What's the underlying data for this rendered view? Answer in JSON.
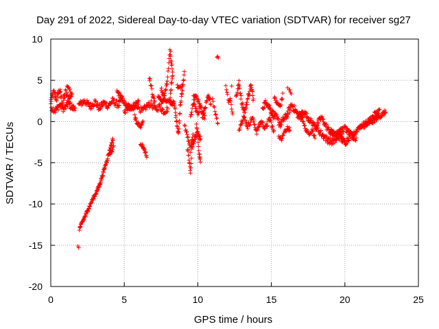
{
  "chart_data": {
    "type": "scatter",
    "title": "Day 291 of 2022, Sidereal Day-to-day VTEC variation (SDTVAR) for receiver sg27",
    "xlabel": "GPS time / hours",
    "ylabel": "SDTVAR / TECUs",
    "xlim": [
      0,
      25
    ],
    "ylim": [
      -20,
      10
    ],
    "xticks": [
      0,
      5,
      10,
      15,
      20,
      25
    ],
    "yticks": [
      -20,
      -15,
      -10,
      -5,
      0,
      5,
      10
    ],
    "grid": true,
    "marker": "+",
    "series": [
      {
        "name": "SDTVAR",
        "color": "#ff0000",
        "tracks": [
          {
            "x": [
              0.0,
              0.2,
              0.4,
              0.6,
              0.8,
              1.0,
              1.2,
              1.4
            ],
            "y": [
              2.5,
              3.5,
              2.8,
              3.8,
              2.2,
              3.5,
              2.8,
              3.2
            ],
            "spread": 1.0,
            "step": 0.025
          },
          {
            "x": [
              0.0,
              0.3,
              0.6,
              0.9,
              1.2,
              1.5,
              1.7
            ],
            "y": [
              1.8,
              1.3,
              2.0,
              1.5,
              2.2,
              1.6,
              1.8
            ],
            "spread": 0.8,
            "step": 0.03
          },
          {
            "x": [
              1.1,
              1.3,
              1.5
            ],
            "y": [
              4.2,
              3.8,
              3.2
            ],
            "spread": 0.4,
            "step": 0.04
          },
          {
            "x": [
              1.9,
              2.3,
              2.7,
              3.0,
              3.3,
              3.6,
              3.9,
              4.2,
              4.6,
              4.9
            ],
            "y": [
              2.0,
              2.5,
              1.8,
              2.4,
              1.6,
              2.3,
              1.9,
              2.5,
              2.0,
              2.8
            ],
            "spread": 0.8,
            "step": 0.03
          },
          {
            "x": [
              4.5,
              4.7,
              4.9,
              5.1,
              5.3,
              5.5,
              5.8,
              6.0
            ],
            "y": [
              3.6,
              3.2,
              2.6,
              2.0,
              1.6,
              1.8,
              2.2,
              2.5
            ],
            "spread": 0.6,
            "step": 0.03
          },
          {
            "x": [
              5.0,
              5.3,
              5.6,
              5.9,
              6.2,
              6.5,
              6.8,
              7.1,
              7.4,
              7.7,
              8.0
            ],
            "y": [
              1.2,
              1.8,
              1.4,
              2.0,
              1.2,
              1.8,
              2.2,
              1.5,
              1.8,
              1.2,
              1.6
            ],
            "spread": 0.8,
            "step": 0.035
          },
          {
            "x": [
              5.7,
              5.9,
              6.1,
              6.3
            ],
            "y": [
              0.6,
              -0.2,
              -0.6,
              0.2
            ],
            "spread": 0.5,
            "step": 0.03
          },
          {
            "x": [
              6.7,
              6.9,
              7.1
            ],
            "y": [
              5.5,
              3.5,
              2.0
            ],
            "spread": 0.6,
            "step": 0.03
          },
          {
            "x": [
              7.3,
              7.6,
              7.9,
              8.1,
              8.3
            ],
            "y": [
              3.2,
              2.2,
              4.5,
              8.3,
              6.0
            ],
            "spread": 0.6,
            "step": 0.025
          },
          {
            "x": [
              7.5,
              7.8,
              8.1,
              8.4
            ],
            "y": [
              4.0,
              2.6,
              2.3,
              2.2
            ],
            "spread": 0.6,
            "step": 0.03
          },
          {
            "x": [
              8.1,
              8.2,
              8.3
            ],
            "y": [
              2.5,
              4.5,
              6.0
            ],
            "spread": 0.5,
            "step": 0.02
          },
          {
            "x": [
              8.4,
              8.5,
              8.6,
              8.7,
              8.8,
              9.0,
              9.1
            ],
            "y": [
              2.2,
              0.8,
              -0.5,
              -1.5,
              1.8,
              4.5,
              6.6
            ],
            "spread": 0.6,
            "step": 0.02
          },
          {
            "x": [
              8.6,
              8.8,
              9.0
            ],
            "y": [
              4.3,
              4.0,
              4.6
            ],
            "spread": 0.4,
            "step": 0.04
          },
          {
            "x": [
              9.1,
              9.3,
              9.5,
              9.7
            ],
            "y": [
              -0.5,
              -1.8,
              -3.5,
              -1.0
            ],
            "spread": 0.5,
            "step": 0.03
          },
          {
            "x": [
              9.3,
              9.4,
              9.5,
              9.6,
              9.8,
              10.0,
              10.2
            ],
            "y": [
              -3.2,
              -4.5,
              -6.2,
              -3.0,
              -2.0,
              -1.5,
              -2.3
            ],
            "spread": 0.7,
            "step": 0.02
          },
          {
            "x": [
              9.5,
              9.7,
              9.9,
              10.1
            ],
            "y": [
              0.5,
              2.2,
              1.3,
              0.8
            ],
            "spread": 0.6,
            "step": 0.03
          },
          {
            "x": [
              9.7,
              9.9,
              10.1,
              10.3,
              10.5
            ],
            "y": [
              2.8,
              3.2,
              2.0,
              1.2,
              0.3
            ],
            "spread": 0.8,
            "step": 0.025
          },
          {
            "x": [
              9.9,
              10.0,
              10.1,
              10.2
            ],
            "y": [
              -0.5,
              -2.0,
              -4.0,
              -5.0
            ],
            "spread": 0.8,
            "step": 0.02
          },
          {
            "x": [
              10.3,
              10.5,
              10.7,
              10.9
            ],
            "y": [
              0.4,
              1.8,
              3.0,
              2.2
            ],
            "spread": 0.5,
            "step": 0.025
          },
          {
            "x": [
              11.0,
              11.2,
              11.4
            ],
            "y": [
              2.8,
              1.0,
              -0.5
            ],
            "spread": 0.5,
            "step": 0.04
          },
          {
            "x": [
              11.9,
              12.1,
              12.2,
              12.4
            ],
            "y": [
              4.4,
              2.4,
              2.8,
              0.5
            ],
            "spread": 0.4,
            "step": 0.04
          },
          {
            "x": [
              12.6,
              12.8,
              13.0,
              13.2,
              13.4,
              13.6,
              13.8
            ],
            "y": [
              3.0,
              4.6,
              2.2,
              1.2,
              2.8,
              4.4,
              2.5
            ],
            "spread": 0.8,
            "step": 0.025
          },
          {
            "x": [
              12.8,
              13.1,
              13.4,
              13.7,
              14.0,
              14.3,
              14.6,
              14.9,
              15.2
            ],
            "y": [
              -0.8,
              0.6,
              -0.6,
              0.5,
              -1.2,
              0.0,
              -0.8,
              0.4,
              -1.6
            ],
            "spread": 0.7,
            "step": 0.03
          },
          {
            "x": [
              14.4,
              14.7,
              15.0,
              15.3,
              15.6,
              16.0,
              16.4,
              16.8,
              17.2
            ],
            "y": [
              1.8,
              2.4,
              1.2,
              0.5,
              -0.3,
              0.6,
              2.0,
              0.8,
              0.4
            ],
            "spread": 0.9,
            "step": 0.025
          },
          {
            "x": [
              15.2,
              15.4,
              15.6,
              15.8
            ],
            "y": [
              2.8,
              2.2,
              1.8,
              3.4
            ],
            "spread": 0.6,
            "step": 0.03
          },
          {
            "x": [
              15.5,
              15.7,
              15.9,
              16.1,
              16.3
            ],
            "y": [
              -1.8,
              -2.2,
              -1.2,
              -0.8,
              -1.0
            ],
            "spread": 0.5,
            "step": 0.035
          },
          {
            "x": [
              16.2,
              16.4
            ],
            "y": [
              4.0,
              3.0
            ],
            "spread": 0.3,
            "step": 0.05
          },
          {
            "x": [
              16.8,
              17.2,
              17.6,
              18.0,
              18.4,
              18.8,
              19.2,
              19.6,
              20.0
            ],
            "y": [
              0.6,
              1.2,
              0.2,
              -0.6,
              0.5,
              -0.8,
              -1.6,
              -1.4,
              -2.2
            ],
            "spread": 0.7,
            "step": 0.03
          },
          {
            "x": [
              17.2,
              17.5,
              17.8,
              18.0
            ],
            "y": [
              -0.4,
              -1.5,
              -1.0,
              -2.4
            ],
            "spread": 0.5,
            "step": 0.035
          },
          {
            "x": [
              18.0,
              18.4,
              18.8,
              19.2,
              19.6,
              20.0,
              20.4,
              20.8
            ],
            "y": [
              -0.6,
              -1.5,
              -2.2,
              -2.5,
              -1.8,
              -2.6,
              -1.6,
              -2.0
            ],
            "spread": 0.8,
            "step": 0.03
          },
          {
            "x": [
              19.0,
              19.5,
              20.0,
              20.5,
              21.0,
              21.5,
              22.0,
              22.4
            ],
            "y": [
              -1.2,
              -1.4,
              -0.8,
              -1.8,
              -0.6,
              -0.2,
              0.8,
              1.4
            ],
            "spread": 0.7,
            "step": 0.03
          },
          {
            "x": [
              21.0,
              21.3,
              21.6,
              21.9,
              22.2,
              22.5,
              22.8
            ],
            "y": [
              -0.8,
              -0.5,
              -0.2,
              0.0,
              0.5,
              0.8,
              1.2
            ],
            "spread": 0.6,
            "step": 0.03
          },
          {
            "x": [
              1.95,
              2.2,
              2.5,
              2.8,
              3.1,
              3.35,
              3.6,
              3.85,
              4.05,
              4.25
            ],
            "y": [
              -13.0,
              -12.0,
              -10.8,
              -9.6,
              -8.6,
              -7.5,
              -6.0,
              -4.5,
              -3.2,
              -2.0
            ],
            "spread": 0.4,
            "step": 0.02
          },
          {
            "x": [
              4.0,
              4.15,
              4.3
            ],
            "y": [
              -4.0,
              -3.6,
              -3.0
            ],
            "spread": 0.4,
            "step": 0.03
          },
          {
            "x": [
              6.1,
              6.25,
              6.4,
              6.55
            ],
            "y": [
              -2.6,
              -3.0,
              -3.6,
              -4.6
            ],
            "spread": 0.4,
            "step": 0.025
          }
        ],
        "points": [
          {
            "x": 1.85,
            "y": -15.1
          },
          {
            "x": 1.9,
            "y": -15.3
          },
          {
            "x": 11.3,
            "y": 7.8
          },
          {
            "x": 11.4,
            "y": 7.7
          },
          {
            "x": 11.35,
            "y": 7.9
          },
          {
            "x": 12.3,
            "y": 4.3
          },
          {
            "x": 16.1,
            "y": 4.1
          },
          {
            "x": 8.1,
            "y": 8.7
          },
          {
            "x": 8.15,
            "y": 8.5
          }
        ]
      }
    ]
  }
}
